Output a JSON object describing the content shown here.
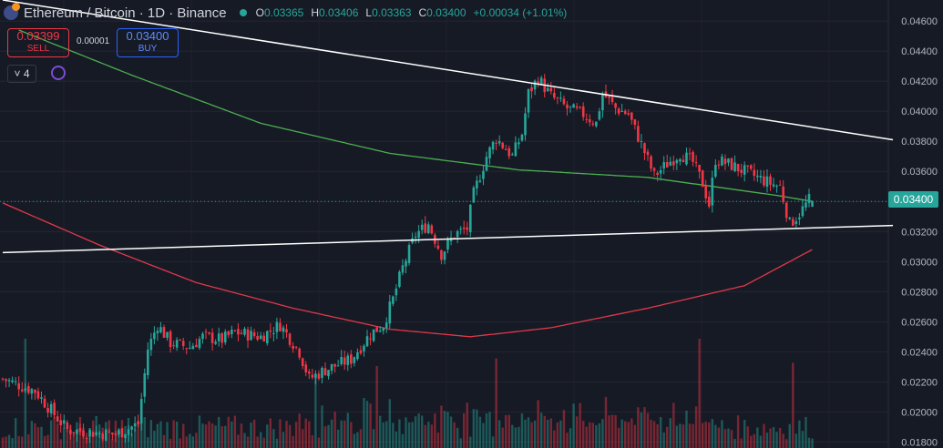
{
  "header": {
    "symbol_title": "Ethereum / Bitcoin · 1D · Binance",
    "open_label": "O",
    "open": "0.03365",
    "high_label": "H",
    "high": "0.03406",
    "low_label": "L",
    "low": "0.03363",
    "close_label": "C",
    "close": "0.03400",
    "change": "+0.00034 (+1.01%)"
  },
  "trade": {
    "sell_price": "0.03399",
    "sell_label": "SELL",
    "spread": "0.00001",
    "buy_price": "0.03400",
    "buy_label": "BUY"
  },
  "indicators_count": "4",
  "current_price_label": "0.03400",
  "colors": {
    "up": "#26a69a",
    "down": "#f23645",
    "ma_green": "#4caf50",
    "ma_red": "#e0384a",
    "trendline": "#ffffff"
  },
  "chart_data": {
    "type": "candlestick",
    "title": "Ethereum / Bitcoin · 1D · Binance",
    "y_ticks": [
      "0.04600",
      "0.04400",
      "0.04200",
      "0.04000",
      "0.03800",
      "0.03600",
      "0.03400",
      "0.03200",
      "0.03000",
      "0.02800",
      "0.02600",
      "0.02400",
      "0.02200",
      "0.02000",
      "0.01800"
    ],
    "ylim": [
      0.0176,
      0.0474
    ],
    "current_price": 0.034,
    "grid": true,
    "keypoints": [
      {
        "i": 0,
        "p": 0.0222
      },
      {
        "i": 10,
        "p": 0.0214
      },
      {
        "i": 20,
        "p": 0.0188
      },
      {
        "i": 35,
        "p": 0.0185
      },
      {
        "i": 42,
        "p": 0.0192
      },
      {
        "i": 45,
        "p": 0.0242
      },
      {
        "i": 48,
        "p": 0.0258
      },
      {
        "i": 52,
        "p": 0.0246
      },
      {
        "i": 58,
        "p": 0.0243
      },
      {
        "i": 62,
        "p": 0.025
      },
      {
        "i": 68,
        "p": 0.0248
      },
      {
        "i": 72,
        "p": 0.0253
      },
      {
        "i": 80,
        "p": 0.025
      },
      {
        "i": 86,
        "p": 0.0258
      },
      {
        "i": 92,
        "p": 0.024
      },
      {
        "i": 95,
        "p": 0.0222
      },
      {
        "i": 100,
        "p": 0.0228
      },
      {
        "i": 108,
        "p": 0.0235
      },
      {
        "i": 114,
        "p": 0.0252
      },
      {
        "i": 118,
        "p": 0.0258
      },
      {
        "i": 121,
        "p": 0.0275
      },
      {
        "i": 124,
        "p": 0.0296
      },
      {
        "i": 128,
        "p": 0.0318
      },
      {
        "i": 132,
        "p": 0.0325
      },
      {
        "i": 136,
        "p": 0.0305
      },
      {
        "i": 140,
        "p": 0.0318
      },
      {
        "i": 144,
        "p": 0.0322
      },
      {
        "i": 146,
        "p": 0.0345
      },
      {
        "i": 150,
        "p": 0.037
      },
      {
        "i": 153,
        "p": 0.0382
      },
      {
        "i": 156,
        "p": 0.0375
      },
      {
        "i": 158,
        "p": 0.037
      },
      {
        "i": 161,
        "p": 0.0385
      },
      {
        "i": 163,
        "p": 0.0412
      },
      {
        "i": 166,
        "p": 0.0422
      },
      {
        "i": 170,
        "p": 0.041
      },
      {
        "i": 175,
        "p": 0.0402
      },
      {
        "i": 180,
        "p": 0.0398
      },
      {
        "i": 184,
        "p": 0.0392
      },
      {
        "i": 186,
        "p": 0.0412
      },
      {
        "i": 190,
        "p": 0.0402
      },
      {
        "i": 194,
        "p": 0.0398
      },
      {
        "i": 198,
        "p": 0.0378
      },
      {
        "i": 202,
        "p": 0.0357
      },
      {
        "i": 206,
        "p": 0.0365
      },
      {
        "i": 210,
        "p": 0.0372
      },
      {
        "i": 214,
        "p": 0.0366
      },
      {
        "i": 217,
        "p": 0.0352
      },
      {
        "i": 219,
        "p": 0.0338
      },
      {
        "i": 221,
        "p": 0.0368
      },
      {
        "i": 226,
        "p": 0.0364
      },
      {
        "i": 232,
        "p": 0.0358
      },
      {
        "i": 238,
        "p": 0.0352
      },
      {
        "i": 241,
        "p": 0.035
      },
      {
        "i": 244,
        "p": 0.0325
      },
      {
        "i": 247,
        "p": 0.0332
      },
      {
        "i": 250,
        "p": 0.0341
      }
    ],
    "ma_green": [
      {
        "i": 5,
        "p": 0.0454
      },
      {
        "i": 40,
        "p": 0.0424
      },
      {
        "i": 80,
        "p": 0.0392
      },
      {
        "i": 120,
        "p": 0.0372
      },
      {
        "i": 160,
        "p": 0.0361
      },
      {
        "i": 200,
        "p": 0.0356
      },
      {
        "i": 240,
        "p": 0.0344
      },
      {
        "i": 251,
        "p": 0.034
      }
    ],
    "ma_red": [
      {
        "i": 0,
        "p": 0.0339
      },
      {
        "i": 30,
        "p": 0.0311
      },
      {
        "i": 60,
        "p": 0.0286
      },
      {
        "i": 90,
        "p": 0.0269
      },
      {
        "i": 120,
        "p": 0.0255
      },
      {
        "i": 145,
        "p": 0.025
      },
      {
        "i": 170,
        "p": 0.0256
      },
      {
        "i": 200,
        "p": 0.0269
      },
      {
        "i": 230,
        "p": 0.0284
      },
      {
        "i": 251,
        "p": 0.0308
      }
    ],
    "trendlines": [
      {
        "from": {
          "i": 0,
          "p": 0.0474
        },
        "to": {
          "i": 276,
          "p": 0.0381
        }
      },
      {
        "from": {
          "i": 0,
          "p": 0.0306
        },
        "to": {
          "i": 276,
          "p": 0.0324
        }
      }
    ],
    "volume_spikes": [
      {
        "i": 7,
        "v": 1.0
      },
      {
        "i": 216,
        "v": 1.0
      },
      {
        "i": 245,
        "v": 0.78
      },
      {
        "i": 153,
        "v": 0.82
      },
      {
        "i": 116,
        "v": 0.75
      },
      {
        "i": 97,
        "v": 0.68
      }
    ]
  }
}
